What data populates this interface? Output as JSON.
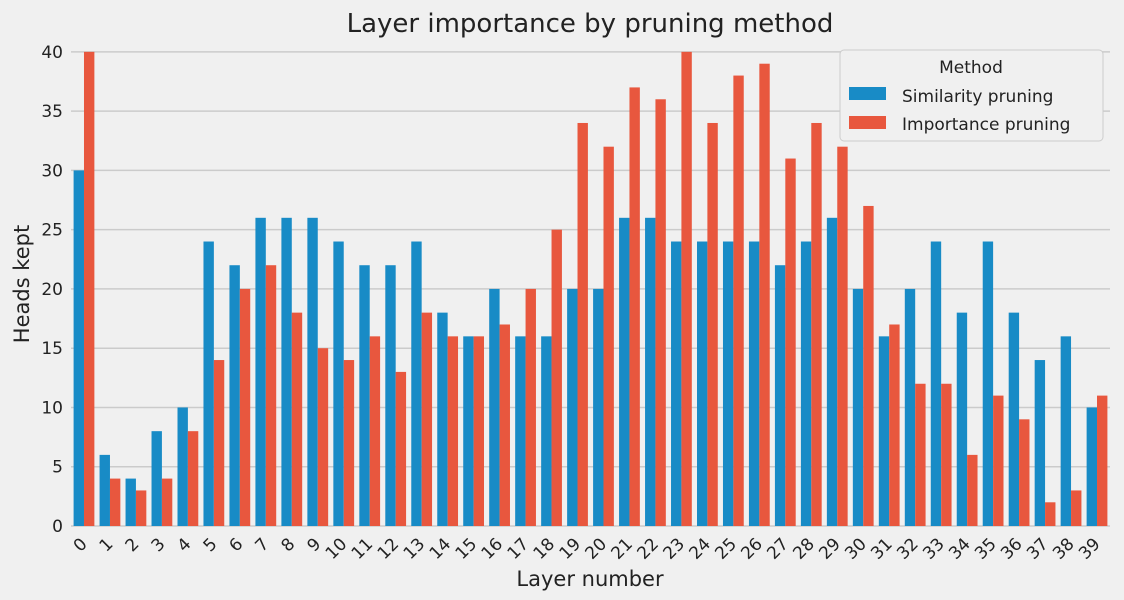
{
  "chart_data": {
    "type": "bar",
    "title": "Layer importance by pruning method",
    "xlabel": "Layer number",
    "ylabel": "Heads kept",
    "ylim": [
      0,
      41
    ],
    "yticks": [
      0,
      5,
      10,
      15,
      20,
      25,
      30,
      35,
      40
    ],
    "grid": "horizontal",
    "legend": {
      "title": "Method",
      "placement": "top-right"
    },
    "categories": [
      "0",
      "1",
      "2",
      "3",
      "4",
      "5",
      "6",
      "7",
      "8",
      "9",
      "10",
      "11",
      "12",
      "13",
      "14",
      "15",
      "16",
      "17",
      "18",
      "19",
      "20",
      "21",
      "22",
      "23",
      "24",
      "25",
      "26",
      "27",
      "28",
      "29",
      "30",
      "31",
      "32",
      "33",
      "34",
      "35",
      "36",
      "37",
      "38",
      "39"
    ],
    "series": [
      {
        "name": "Similarity pruning",
        "color": "#188bc6",
        "values": [
          30,
          6,
          4,
          8,
          10,
          24,
          22,
          26,
          26,
          26,
          24,
          22,
          22,
          24,
          18,
          16,
          20,
          16,
          16,
          20,
          20,
          26,
          26,
          24,
          24,
          24,
          24,
          22,
          24,
          26,
          20,
          16,
          20,
          24,
          18,
          24,
          18,
          14,
          16,
          10
        ]
      },
      {
        "name": "Importance pruning",
        "color": "#e8573e",
        "values": [
          40,
          4,
          3,
          4,
          8,
          14,
          20,
          22,
          18,
          15,
          14,
          16,
          13,
          18,
          16,
          16,
          17,
          20,
          25,
          34,
          32,
          37,
          36,
          40,
          34,
          38,
          39,
          31,
          34,
          32,
          27,
          17,
          12,
          12,
          6,
          11,
          9,
          2,
          3,
          11
        ]
      }
    ]
  }
}
